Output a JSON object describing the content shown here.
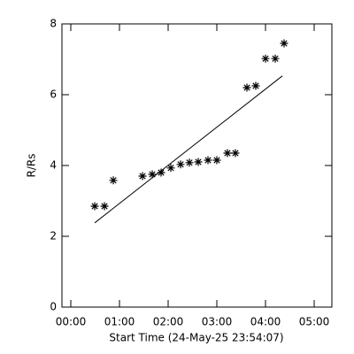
{
  "chart_data": {
    "type": "scatter",
    "xlabel": "Start Time (24-May-25 23:54:07)",
    "ylabel": "R/Rs",
    "x": [
      29.5,
      41.5,
      52.4,
      88.4,
      100.4,
      111.3,
      123.3,
      135.3,
      146.2,
      157.1,
      169.1,
      180,
      193.1,
      202.9,
      217.1,
      228,
      240,
      252,
      262.9
    ],
    "values": [
      2.85,
      2.85,
      3.58,
      3.7,
      3.75,
      3.8,
      3.93,
      4.03,
      4.08,
      4.1,
      4.15,
      4.15,
      4.35,
      4.35,
      6.2,
      6.25,
      7.02,
      7.02,
      7.45
    ],
    "color": "#000000",
    "fit": {
      "x": [
        29.5,
        260.7
      ],
      "y": [
        2.38,
        6.53
      ]
    },
    "xlim": [
      -10.9,
      321.8
    ],
    "ylim": [
      0,
      8
    ],
    "xticks": [
      {
        "value": 0,
        "label": "00:00"
      },
      {
        "value": 60,
        "label": "01:00"
      },
      {
        "value": 120,
        "label": "02:00"
      },
      {
        "value": 180,
        "label": "03:00"
      },
      {
        "value": 240,
        "label": "04:00"
      },
      {
        "value": 300,
        "label": "05:00"
      }
    ],
    "yticks": [
      0,
      2,
      4,
      6,
      8
    ]
  }
}
